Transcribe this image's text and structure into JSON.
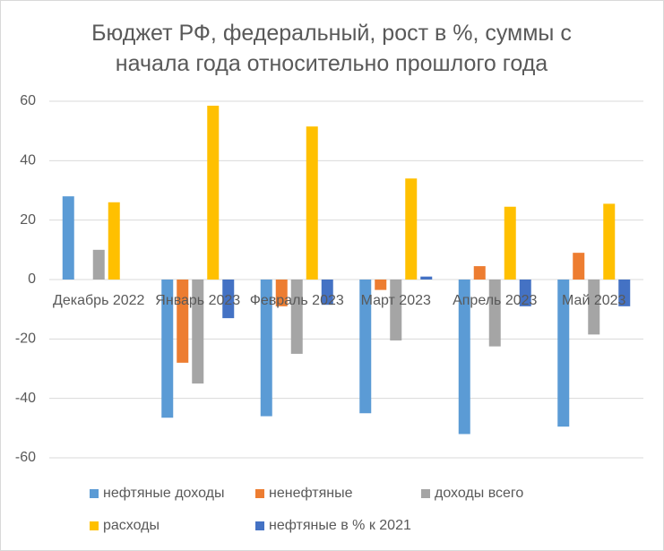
{
  "chart_data": {
    "type": "bar",
    "title": "Бюджет РФ, федеральный, рост в %, суммы с начала года относительно прошлого года",
    "categories": [
      "Декабрь 2022",
      "Январь 2023",
      "Февраль 2023",
      "Март 2023",
      "Апрель 2023",
      "Май 2023"
    ],
    "series": [
      {
        "name": "нефтяные доходы",
        "color": "#5b9bd5",
        "values": [
          28,
          -46.5,
          -46,
          -45,
          -52,
          -49.5
        ]
      },
      {
        "name": "ненефтяные",
        "color": "#ed7d31",
        "values": [
          null,
          -28,
          -9,
          -3.5,
          4.5,
          9
        ]
      },
      {
        "name": "доходы всего",
        "color": "#a5a5a5",
        "values": [
          10,
          -35,
          -25,
          -20.5,
          -22.5,
          -18.5
        ]
      },
      {
        "name": "расходы",
        "color": "#ffc000",
        "values": [
          26,
          58.5,
          51.5,
          34,
          24.5,
          25.5
        ]
      },
      {
        "name": "нефтяные в % к 2021",
        "color": "#4472c4",
        "values": [
          null,
          -13,
          -8.5,
          1,
          -9,
          -9
        ]
      }
    ],
    "ylim": [
      -60,
      60
    ],
    "yticks": [
      -60,
      -40,
      -20,
      0,
      20,
      40,
      60
    ],
    "grid": true,
    "legend": "bottom"
  }
}
